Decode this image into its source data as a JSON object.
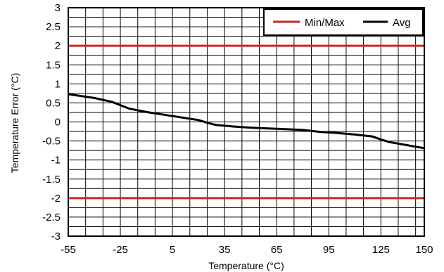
{
  "chart_data": {
    "type": "line",
    "xlabel": "Temperature (°C)",
    "ylabel": "Temperature Error (°C)",
    "xlim": [
      -55,
      150
    ],
    "ylim": [
      -3,
      3
    ],
    "x_ticks": [
      -55,
      -25,
      5,
      35,
      65,
      95,
      125,
      150
    ],
    "x_tick_labels": [
      "-55",
      "-25",
      "5",
      "35",
      "65",
      "95",
      "125",
      "150"
    ],
    "y_ticks": [
      3,
      2.5,
      2,
      1.5,
      1,
      0.5,
      0,
      -0.5,
      -1,
      -1.5,
      -2,
      -2.5,
      -3
    ],
    "y_tick_labels": [
      "3",
      "2.5",
      "2",
      "1.5",
      "1",
      "0.5",
      "0",
      "-0.5",
      "-1",
      "-1.5",
      "-2",
      "-2.5",
      "-3"
    ],
    "grid_x_step": 10,
    "grid_y_step": 0.25,
    "grid": true,
    "legend_position": "top-right",
    "series": [
      {
        "name": "Min/Max",
        "color": "#d62020",
        "segments": [
          {
            "x": [
              -55,
              150
            ],
            "y": [
              2,
              2
            ]
          },
          {
            "x": [
              -55,
              150
            ],
            "y": [
              -2,
              -2
            ]
          }
        ]
      },
      {
        "name": "Avg",
        "color": "#000000",
        "x": [
          -55,
          -40,
          -30,
          -20,
          -10,
          0,
          10,
          20,
          25,
          30,
          40,
          50,
          60,
          70,
          80,
          90,
          100,
          110,
          120,
          125,
          130,
          140,
          150
        ],
        "y": [
          0.73,
          0.63,
          0.53,
          0.35,
          0.26,
          0.19,
          0.12,
          0.05,
          -0.02,
          -0.08,
          -0.12,
          -0.15,
          -0.17,
          -0.19,
          -0.21,
          -0.26,
          -0.29,
          -0.33,
          -0.38,
          -0.46,
          -0.53,
          -0.61,
          -0.69
        ]
      }
    ]
  }
}
